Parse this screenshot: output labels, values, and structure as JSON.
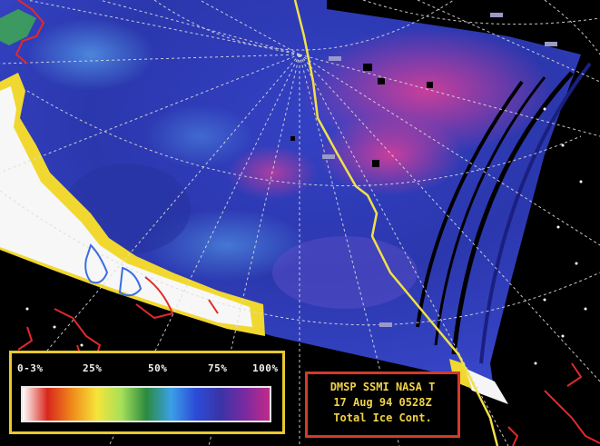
{
  "legend": {
    "ticks": [
      "0-3%",
      "25%",
      "50%",
      "75%",
      "100%"
    ],
    "colors": [
      "#ffffff",
      "#d8261c",
      "#f08a1a",
      "#f6e43a",
      "#a6e05a",
      "#2b8a3e",
      "#3aa0e6",
      "#2c4cd8",
      "#3a34a8",
      "#7a2aa0",
      "#c02a8a"
    ]
  },
  "info": {
    "line1": "DMSP SSMI NASA T",
    "line2": "17 Aug 94 0528Z",
    "line3": "Total Ice Cont."
  },
  "map_style": {
    "background": "#000000",
    "ice_base": "#2f3fb8",
    "ice_high": "#c23a9a",
    "ice_edge_low": "#f4f4f4",
    "ice_edge_mid": "#f2e23a",
    "grid": "#dcdcdc",
    "track": "#f0e04a",
    "coast": "#e02a2a",
    "swath_gap": "#000000"
  }
}
